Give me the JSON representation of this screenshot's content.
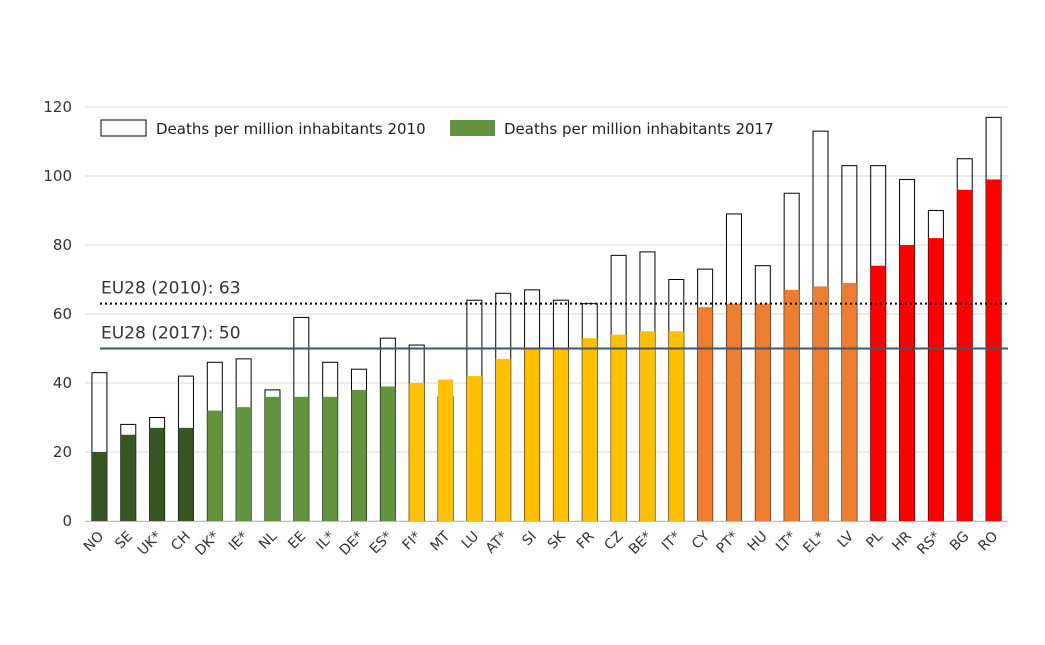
{
  "chart_data": {
    "type": "bar",
    "title": "",
    "xlabel": "",
    "ylabel": "",
    "ylim": [
      0,
      120
    ],
    "yticks": [
      0,
      20,
      40,
      60,
      80,
      100,
      120
    ],
    "grid": true,
    "legend_position": "top-left",
    "categories": [
      "NO",
      "SE",
      "UK*",
      "CH",
      "DK*",
      "IE*",
      "NL",
      "EE",
      "IL*",
      "DE*",
      "ES*",
      "FI*",
      "MT",
      "LU",
      "AT*",
      "SI",
      "SK",
      "FR",
      "CZ",
      "BE*",
      "IT*",
      "CY",
      "PT*",
      "HU",
      "LT*",
      "EL*",
      "LV",
      "PL",
      "HR",
      "RS*",
      "BG",
      "RO"
    ],
    "series": [
      {
        "name": "Deaths per million inhabitants 2010",
        "style": "outline",
        "values": [
          43,
          28,
          30,
          42,
          46,
          47,
          38,
          59,
          46,
          44,
          53,
          51,
          36,
          64,
          66,
          67,
          64,
          63,
          77,
          78,
          70,
          73,
          89,
          74,
          95,
          113,
          103,
          103,
          99,
          90,
          105,
          117
        ]
      },
      {
        "name": "Deaths per million inhabitants 2017",
        "style": "filled",
        "values": [
          20,
          25,
          27,
          27,
          32,
          33,
          36,
          36,
          36,
          38,
          39,
          40,
          41,
          42,
          47,
          50,
          50,
          53,
          54,
          55,
          55,
          62,
          63,
          63,
          67,
          68,
          69,
          74,
          80,
          82,
          96,
          99
        ]
      }
    ],
    "bar_colors": [
      "#375623",
      "#375623",
      "#375623",
      "#375623",
      "#629440",
      "#629440",
      "#629440",
      "#629440",
      "#629440",
      "#629440",
      "#629440",
      "#ffc000",
      "#ffc000",
      "#ffc000",
      "#ffc000",
      "#ffc000",
      "#ffc000",
      "#ffc000",
      "#ffc000",
      "#ffc000",
      "#ffc000",
      "#ed7d31",
      "#ed7d31",
      "#ed7d31",
      "#ed7d31",
      "#ed7d31",
      "#ed7d31",
      "#ff0000",
      "#ff0000",
      "#ff0000",
      "#ff0000",
      "#ff0000"
    ],
    "legend_fill_2017": "#629440",
    "reference_lines": [
      {
        "label": "EU28 (2010): 63",
        "value": 63,
        "style": "dotted",
        "color": "#000000"
      },
      {
        "label": "EU28 (2017): 50",
        "value": 50,
        "style": "solid",
        "color": "#44546a"
      }
    ]
  }
}
